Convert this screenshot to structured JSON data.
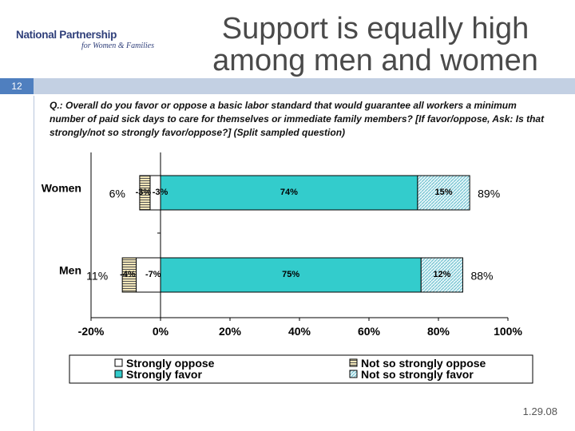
{
  "logo": {
    "line1": "National Partnership",
    "line2": "for Women & Families"
  },
  "title_line1": "Support is equally high",
  "title_line2": "among men and women",
  "slide_number": "12",
  "question": "Q.: Overall do you favor or oppose a basic labor standard that would guarantee all workers a minimum number of paid sick days to care for themselves or immediate family members? [If favor/oppose, Ask: Is that strongly/not so strongly favor/oppose?] (Split sampled question)",
  "footer_date": "1.29.08",
  "colors": {
    "strongly_favor": "#33cccc",
    "strongly_oppose": "#ffffff",
    "not_so_oppose": "#f2e6b8",
    "not_so_favor": "#e4f6f8"
  },
  "chart_data": {
    "type": "bar",
    "orientation": "horizontal-stacked",
    "categories": [
      "Women",
      "Men"
    ],
    "series": [
      {
        "name": "Strongly oppose",
        "values": [
          -3,
          -7
        ]
      },
      {
        "name": "Not so strongly oppose",
        "values": [
          -3,
          -4
        ]
      },
      {
        "name": "Strongly favor",
        "values": [
          74,
          75
        ]
      },
      {
        "name": "Not so strongly favor",
        "values": [
          15,
          12
        ]
      }
    ],
    "segment_labels": [
      [
        "-3%",
        "-3%",
        "74%",
        "15%"
      ],
      [
        "-7%",
        "-4%",
        "75%",
        "12%"
      ]
    ],
    "total_oppose_labels": [
      "6%",
      "11%"
    ],
    "total_favor_labels": [
      "89%",
      "88%"
    ],
    "xlim": [
      -20,
      100
    ],
    "xticks": [
      "-20%",
      "0%",
      "20%",
      "40%",
      "60%",
      "80%",
      "100%"
    ],
    "legend": [
      "Strongly oppose",
      "Not so strongly oppose",
      "Strongly favor",
      "Not so strongly favor"
    ],
    "legend_position": "bottom"
  }
}
